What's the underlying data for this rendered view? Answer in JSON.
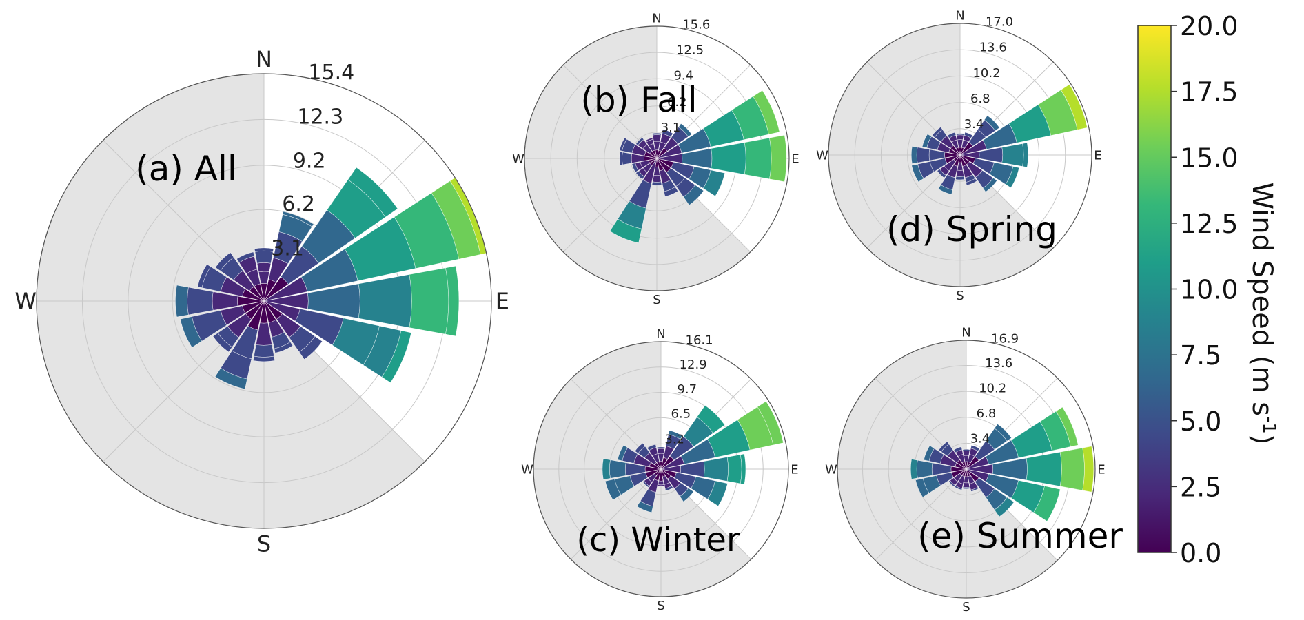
{
  "chart_data": [
    {
      "type": "wind-rose",
      "panel_label": "(a) All",
      "directions": [
        "N",
        "E",
        "S",
        "W"
      ],
      "ring_labels": [
        "3.1",
        "6.2",
        "9.2",
        "12.3",
        "15.4"
      ],
      "r_max": 15.4,
      "shaded_sector_deg": [
        0,
        135
      ],
      "sectors": [
        {
          "dir_deg": 0,
          "bins": [
            1.2,
            2.0,
            2.6,
            3.4,
            3.6
          ]
        },
        {
          "dir_deg": 22.5,
          "bins": [
            1.5,
            3.0,
            4.8,
            6.0,
            6.2
          ]
        },
        {
          "dir_deg": 45,
          "bins": [
            2.0,
            4.5,
            7.5,
            10.0,
            11.0
          ]
        },
        {
          "dir_deg": 67.5,
          "bins": [
            3.0,
            6.5,
            10.5,
            13.5,
            15.0,
            15.4
          ]
        },
        {
          "dir_deg": 90,
          "bins": [
            3.0,
            6.5,
            10.0,
            12.5,
            13.2
          ]
        },
        {
          "dir_deg": 112.5,
          "bins": [
            2.5,
            5.5,
            8.0,
            9.5,
            10.2
          ]
        },
        {
          "dir_deg": 135,
          "bins": [
            1.5,
            3.0,
            4.2,
            4.8
          ]
        },
        {
          "dir_deg": 157.5,
          "bins": [
            1.5,
            2.5,
            3.3,
            3.6
          ]
        },
        {
          "dir_deg": 180,
          "bins": [
            1.5,
            3.0,
            3.8,
            4.1
          ]
        },
        {
          "dir_deg": 202.5,
          "bins": [
            2.0,
            4.0,
            5.4,
            6.1
          ]
        },
        {
          "dir_deg": 225,
          "bins": [
            1.5,
            3.0,
            3.8,
            4.2
          ]
        },
        {
          "dir_deg": 247.5,
          "bins": [
            1.5,
            3.0,
            5.0,
            5.8
          ]
        },
        {
          "dir_deg": 270,
          "bins": [
            1.8,
            3.5,
            5.2,
            6.0
          ]
        },
        {
          "dir_deg": 292.5,
          "bins": [
            1.5,
            3.0,
            4.3,
            4.6
          ]
        },
        {
          "dir_deg": 315,
          "bins": [
            1.2,
            2.5,
            3.6,
            4.0
          ]
        },
        {
          "dir_deg": 337.5,
          "bins": [
            1.2,
            2.2,
            3.1,
            3.4
          ]
        }
      ]
    },
    {
      "type": "wind-rose",
      "panel_label": "(b) Fall",
      "directions": [
        "N",
        "E",
        "S",
        "W"
      ],
      "ring_labels": [
        "3.1",
        "6.2",
        "9.4",
        "12.5",
        "15.6"
      ],
      "r_max": 15.6,
      "shaded_sector_deg": [
        0,
        135
      ],
      "sectors": [
        {
          "dir_deg": 0,
          "bins": [
            1.0,
            2.0,
            2.8,
            3.0
          ]
        },
        {
          "dir_deg": 22.5,
          "bins": [
            1.0,
            2.0,
            3.0,
            3.5
          ]
        },
        {
          "dir_deg": 45,
          "bins": [
            1.5,
            3.0,
            4.5,
            5.0
          ]
        },
        {
          "dir_deg": 67.5,
          "bins": [
            3.0,
            6.5,
            10.5,
            13.5,
            14.8
          ]
        },
        {
          "dir_deg": 90,
          "bins": [
            3.0,
            6.5,
            10.5,
            13.5,
            15.3
          ]
        },
        {
          "dir_deg": 112.5,
          "bins": [
            2.0,
            4.5,
            6.5,
            8.2
          ]
        },
        {
          "dir_deg": 135,
          "bins": [
            2.0,
            4.0,
            5.5,
            6.7
          ]
        },
        {
          "dir_deg": 157.5,
          "bins": [
            1.5,
            3.0,
            4.0,
            4.6
          ]
        },
        {
          "dir_deg": 180,
          "bins": [
            1.0,
            2.0,
            2.8,
            3.2
          ]
        },
        {
          "dir_deg": 202.5,
          "bins": [
            3.0,
            6.0,
            8.5,
            10.2
          ]
        },
        {
          "dir_deg": 225,
          "bins": [
            1.0,
            2.0,
            2.6,
            3.0
          ]
        },
        {
          "dir_deg": 247.5,
          "bins": [
            1.0,
            2.0,
            2.6,
            3.0
          ]
        },
        {
          "dir_deg": 270,
          "bins": [
            1.5,
            3.0,
            4.1,
            4.4
          ]
        },
        {
          "dir_deg": 292.5,
          "bins": [
            1.5,
            3.0,
            4.2,
            4.5
          ]
        },
        {
          "dir_deg": 315,
          "bins": [
            1.0,
            2.0,
            2.7,
            3.0
          ]
        },
        {
          "dir_deg": 337.5,
          "bins": [
            1.0,
            1.8,
            2.3,
            2.5
          ]
        }
      ]
    },
    {
      "type": "wind-rose",
      "panel_label": "(c) Winter",
      "directions": [
        "N",
        "E",
        "S",
        "W"
      ],
      "ring_labels": [
        "3.2",
        "6.5",
        "9.7",
        "12.9",
        "16.1"
      ],
      "r_max": 16.1,
      "shaded_sector_deg": [
        0,
        135
      ],
      "sectors": [
        {
          "dir_deg": 0,
          "bins": [
            1.0,
            2.0,
            2.6,
            2.8
          ]
        },
        {
          "dir_deg": 22.5,
          "bins": [
            1.5,
            3.0,
            4.5,
            5.0
          ]
        },
        {
          "dir_deg": 45,
          "bins": [
            2.0,
            5.0,
            8.0,
            9.8
          ]
        },
        {
          "dir_deg": 67.5,
          "bins": [
            3.0,
            7.0,
            11.5,
            14.5,
            15.8
          ]
        },
        {
          "dir_deg": 90,
          "bins": [
            2.5,
            5.5,
            8.5,
            10.2,
            10.7
          ]
        },
        {
          "dir_deg": 112.5,
          "bins": [
            2.0,
            4.5,
            7.0,
            8.6
          ]
        },
        {
          "dir_deg": 135,
          "bins": [
            1.5,
            3.0,
            4.2,
            5.0
          ]
        },
        {
          "dir_deg": 157.5,
          "bins": [
            1.0,
            2.0,
            2.5,
            2.8
          ]
        },
        {
          "dir_deg": 180,
          "bins": [
            1.0,
            1.5,
            2.0,
            2.2
          ]
        },
        {
          "dir_deg": 202.5,
          "bins": [
            1.5,
            3.0,
            4.8,
            5.6
          ]
        },
        {
          "dir_deg": 225,
          "bins": [
            1.0,
            2.0,
            2.6,
            2.8
          ]
        },
        {
          "dir_deg": 247.5,
          "bins": [
            2.0,
            4.0,
            6.0,
            7.2
          ]
        },
        {
          "dir_deg": 270,
          "bins": [
            2.0,
            4.5,
            6.5,
            7.4
          ]
        },
        {
          "dir_deg": 292.5,
          "bins": [
            1.5,
            3.5,
            5.0,
            5.6
          ]
        },
        {
          "dir_deg": 315,
          "bins": [
            1.0,
            2.5,
            3.5,
            4.0
          ]
        },
        {
          "dir_deg": 337.5,
          "bins": [
            1.0,
            2.0,
            2.8,
            3.2
          ]
        }
      ]
    },
    {
      "type": "wind-rose",
      "panel_label": "(d) Spring",
      "directions": [
        "N",
        "E",
        "S",
        "W"
      ],
      "ring_labels": [
        "3.4",
        "6.8",
        "10.2",
        "13.6",
        "17.0"
      ],
      "r_max": 17.0,
      "shaded_sector_deg": [
        0,
        135
      ],
      "sectors": [
        {
          "dir_deg": 0,
          "bins": [
            1.0,
            2.0,
            2.6,
            2.8
          ]
        },
        {
          "dir_deg": 22.5,
          "bins": [
            1.0,
            2.0,
            2.6,
            3.0
          ]
        },
        {
          "dir_deg": 45,
          "bins": [
            2.0,
            4.0,
            5.5,
            6.2
          ]
        },
        {
          "dir_deg": 67.5,
          "bins": [
            3.5,
            7.5,
            12.0,
            15.5,
            16.8
          ]
        },
        {
          "dir_deg": 90,
          "bins": [
            2.5,
            5.5,
            8.2,
            8.8
          ]
        },
        {
          "dir_deg": 112.5,
          "bins": [
            2.0,
            4.5,
            7.0,
            7.8
          ]
        },
        {
          "dir_deg": 135,
          "bins": [
            1.5,
            3.5,
            5.2,
            5.8
          ]
        },
        {
          "dir_deg": 157.5,
          "bins": [
            1.5,
            3.0,
            3.6,
            4.0
          ]
        },
        {
          "dir_deg": 180,
          "bins": [
            1.0,
            2.0,
            2.8,
            3.2
          ]
        },
        {
          "dir_deg": 202.5,
          "bins": [
            1.5,
            3.0,
            4.6,
            5.2
          ]
        },
        {
          "dir_deg": 225,
          "bins": [
            1.0,
            2.5,
            3.2,
            3.6
          ]
        },
        {
          "dir_deg": 247.5,
          "bins": [
            2.0,
            4.0,
            5.6,
            6.4
          ]
        },
        {
          "dir_deg": 270,
          "bins": [
            2.0,
            4.0,
            5.6,
            6.3
          ]
        },
        {
          "dir_deg": 292.5,
          "bins": [
            1.5,
            3.0,
            4.4,
            5.0
          ]
        },
        {
          "dir_deg": 315,
          "bins": [
            1.5,
            3.0,
            4.0,
            4.4
          ]
        },
        {
          "dir_deg": 337.5,
          "bins": [
            1.0,
            2.0,
            2.6,
            3.0
          ]
        }
      ]
    },
    {
      "type": "wind-rose",
      "panel_label": "(e) Summer",
      "directions": [
        "N",
        "E",
        "S",
        "W"
      ],
      "ring_labels": [
        "3.4",
        "6.8",
        "10.2",
        "13.6",
        "16.9"
      ],
      "r_max": 16.9,
      "shaded_sector_deg": [
        0,
        135
      ],
      "sectors": [
        {
          "dir_deg": 0,
          "bins": [
            1.0,
            1.8,
            2.4,
            2.6
          ]
        },
        {
          "dir_deg": 22.5,
          "bins": [
            1.0,
            2.0,
            2.8,
            3.2
          ]
        },
        {
          "dir_deg": 45,
          "bins": [
            2.0,
            4.5,
            6.5,
            7.2
          ]
        },
        {
          "dir_deg": 67.5,
          "bins": [
            3.0,
            7.0,
            11.5,
            14.0,
            15.0
          ]
        },
        {
          "dir_deg": 90,
          "bins": [
            3.5,
            8.0,
            12.5,
            15.5,
            16.7
          ]
        },
        {
          "dir_deg": 112.5,
          "bins": [
            3.0,
            7.0,
            10.5,
            12.6
          ]
        },
        {
          "dir_deg": 135,
          "bins": [
            2.0,
            4.5,
            6.5,
            7.6
          ]
        },
        {
          "dir_deg": 157.5,
          "bins": [
            1.0,
            2.0,
            2.8,
            3.0
          ]
        },
        {
          "dir_deg": 180,
          "bins": [
            1.0,
            1.8,
            2.4,
            2.6
          ]
        },
        {
          "dir_deg": 202.5,
          "bins": [
            1.0,
            2.0,
            2.6,
            2.8
          ]
        },
        {
          "dir_deg": 225,
          "bins": [
            1.0,
            2.0,
            2.6,
            2.8
          ]
        },
        {
          "dir_deg": 247.5,
          "bins": [
            2.0,
            4.0,
            5.8,
            6.8
          ]
        },
        {
          "dir_deg": 270,
          "bins": [
            2.0,
            4.5,
            6.5,
            7.3
          ]
        },
        {
          "dir_deg": 292.5,
          "bins": [
            1.5,
            3.5,
            5.0,
            5.7
          ]
        },
        {
          "dir_deg": 315,
          "bins": [
            1.5,
            3.0,
            4.0,
            4.4
          ]
        },
        {
          "dir_deg": 337.5,
          "bins": [
            1.0,
            2.0,
            2.6,
            3.0
          ]
        }
      ]
    }
  ],
  "colorbar": {
    "title": "Wind Speed (m s",
    "title_superscript": "-1",
    "title_close": ")",
    "range": [
      0,
      20
    ],
    "ticks": [
      "20.0",
      "17.5",
      "15.0",
      "12.5",
      "10.0",
      "7.5",
      "5.0",
      "2.5",
      "0.0"
    ],
    "colormap": "viridis",
    "colors": [
      "#440154",
      "#482878",
      "#3e4989",
      "#31688e",
      "#26828e",
      "#1f9e89",
      "#35b779",
      "#6ece58",
      "#b5de2b",
      "#fde725"
    ],
    "shading_color": "#e4e4e4"
  }
}
